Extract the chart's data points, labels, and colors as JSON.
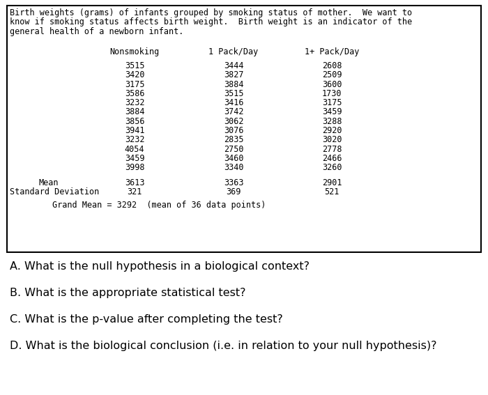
{
  "description_lines": [
    "Birth weights (grams) of infants grouped by smoking status of mother.  We want to",
    "know if smoking status affects birth weight.  Birth weight is an indicator of the",
    "general health of a newborn infant."
  ],
  "col_headers": [
    "Nonsmoking",
    "1 Pack/Day",
    "1+ Pack/Day"
  ],
  "nonsmoking": [
    3515,
    3420,
    3175,
    3586,
    3232,
    3884,
    3856,
    3941,
    3232,
    4054,
    3459,
    3998
  ],
  "one_pack": [
    3444,
    3827,
    3884,
    3515,
    3416,
    3742,
    3062,
    3076,
    2835,
    2750,
    3460,
    3340
  ],
  "one_plus_pack": [
    2608,
    2509,
    3600,
    1730,
    3175,
    3459,
    3288,
    2920,
    3020,
    2778,
    2466,
    3260
  ],
  "mean_label": "Mean",
  "std_label": "Standard Deviation",
  "means": [
    "3613",
    "3363",
    "2901"
  ],
  "stds": [
    "321",
    "369",
    "521"
  ],
  "grand_mean_text": "Grand Mean = 3292  (mean of 36 data points)",
  "questions": [
    "A. What is the null hypothesis in a biological context?",
    "B. What is the appropriate statistical test?",
    "C. What is the p-value after completing the test?",
    "D. What is the biological conclusion (i.e. in relation to your null hypothesis)?"
  ],
  "bg_color": "#ffffff",
  "box_color": "#000000",
  "mono_font": "DejaVu Sans Mono",
  "sans_font": "DejaVu Sans",
  "fs_mono": 8.5,
  "fs_questions": 11.5
}
